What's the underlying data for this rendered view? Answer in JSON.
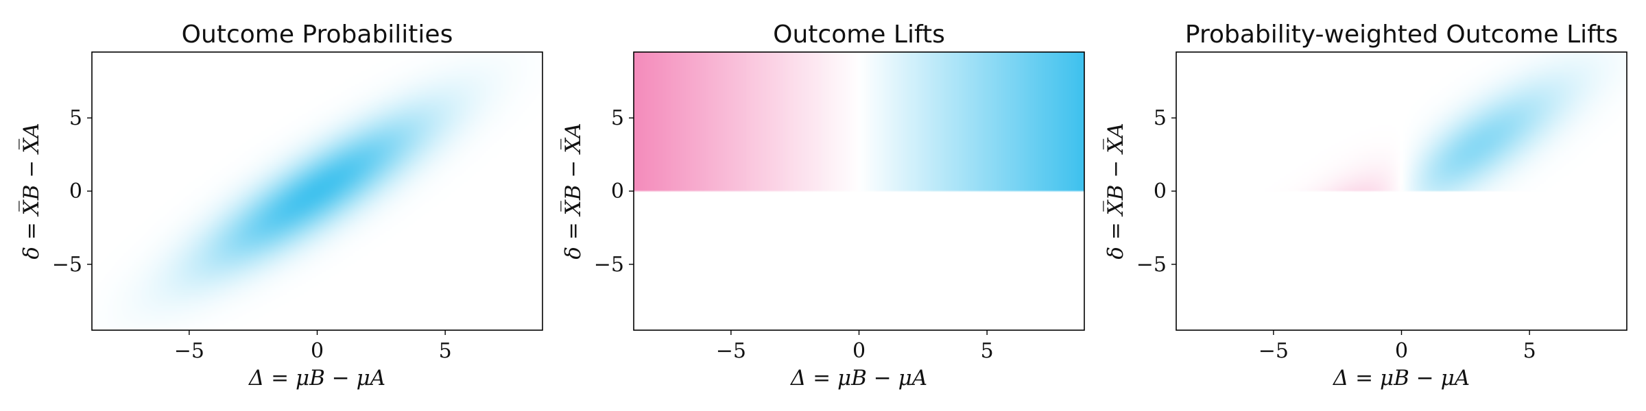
{
  "colors": {
    "positive": "#3ec1ee",
    "negative": "#f48bbb",
    "background": "#ffffff"
  },
  "chart_data": [
    {
      "type": "heatmap",
      "title": "Outcome Probabilities",
      "xlabel": "Δ = μB − μA",
      "ylabel": "δ = X̅B − X̅A",
      "xlim": [
        -8.8,
        8.8
      ],
      "ylim": [
        -9.5,
        9.5
      ],
      "xticks": [
        -5,
        0,
        5
      ],
      "yticks": [
        -5,
        0,
        5
      ],
      "field": "joint normal density of (Δ, δ)",
      "center": [
        0,
        0
      ],
      "sd": [
        3.0,
        3.6
      ],
      "correlation": 0.86
    },
    {
      "type": "heatmap",
      "title": "Outcome Lifts",
      "xlabel": "Δ = μB − μA",
      "ylabel": "δ = X̅B − X̅A",
      "xlim": [
        -8.8,
        8.8
      ],
      "ylim": [
        -9.5,
        9.5
      ],
      "xticks": [
        -5,
        0,
        5
      ],
      "yticks": [
        -5,
        0,
        5
      ],
      "field": "lift = Δ where δ > 0, else 0",
      "color_range": [
        -8.8,
        8.8
      ]
    },
    {
      "type": "heatmap",
      "title": "Probability-weighted Outcome Lifts",
      "xlabel": "Δ = μB − μA",
      "ylabel": "δ = X̅B − X̅A",
      "xlim": [
        -8.8,
        8.8
      ],
      "ylim": [
        -9.5,
        9.5
      ],
      "xticks": [
        -5,
        0,
        5
      ],
      "yticks": [
        -5,
        0,
        5
      ],
      "field": "density × lift where δ > 0, else 0",
      "peak": [
        2.5,
        2.5
      ]
    }
  ]
}
